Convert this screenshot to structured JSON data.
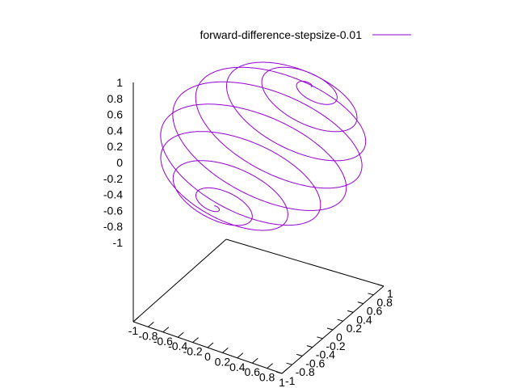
{
  "chart_data": {
    "type": "line",
    "plot_kind": "3d-parametric-curve",
    "series": [
      {
        "name": "forward-difference-stepsize-0.01",
        "color": "#9400d3",
        "curve": "spiral on the unit sphere between two poles (turns = 9)"
      }
    ],
    "xlim": [
      -1,
      1
    ],
    "ylim": [
      -1,
      1
    ],
    "zlim": [
      -1,
      1
    ],
    "x_ticks": [
      "-1",
      "-0.8",
      "-0.6",
      "-0.4",
      "-0.2",
      "0",
      "0.2",
      "0.4",
      "0.6",
      "0.8",
      "1"
    ],
    "y_ticks": [
      "-1",
      "-0.8",
      "-0.6",
      "-0.4",
      "-0.2",
      "0",
      "0.2",
      "0.4",
      "0.6",
      "0.8",
      "1"
    ],
    "z_ticks": [
      "1",
      "0.8",
      "0.6",
      "0.4",
      "0.2",
      "0",
      "-0.2",
      "-0.4",
      "-0.6",
      "-0.8",
      "-1"
    ],
    "grid": false,
    "legend_position": "top-right"
  }
}
